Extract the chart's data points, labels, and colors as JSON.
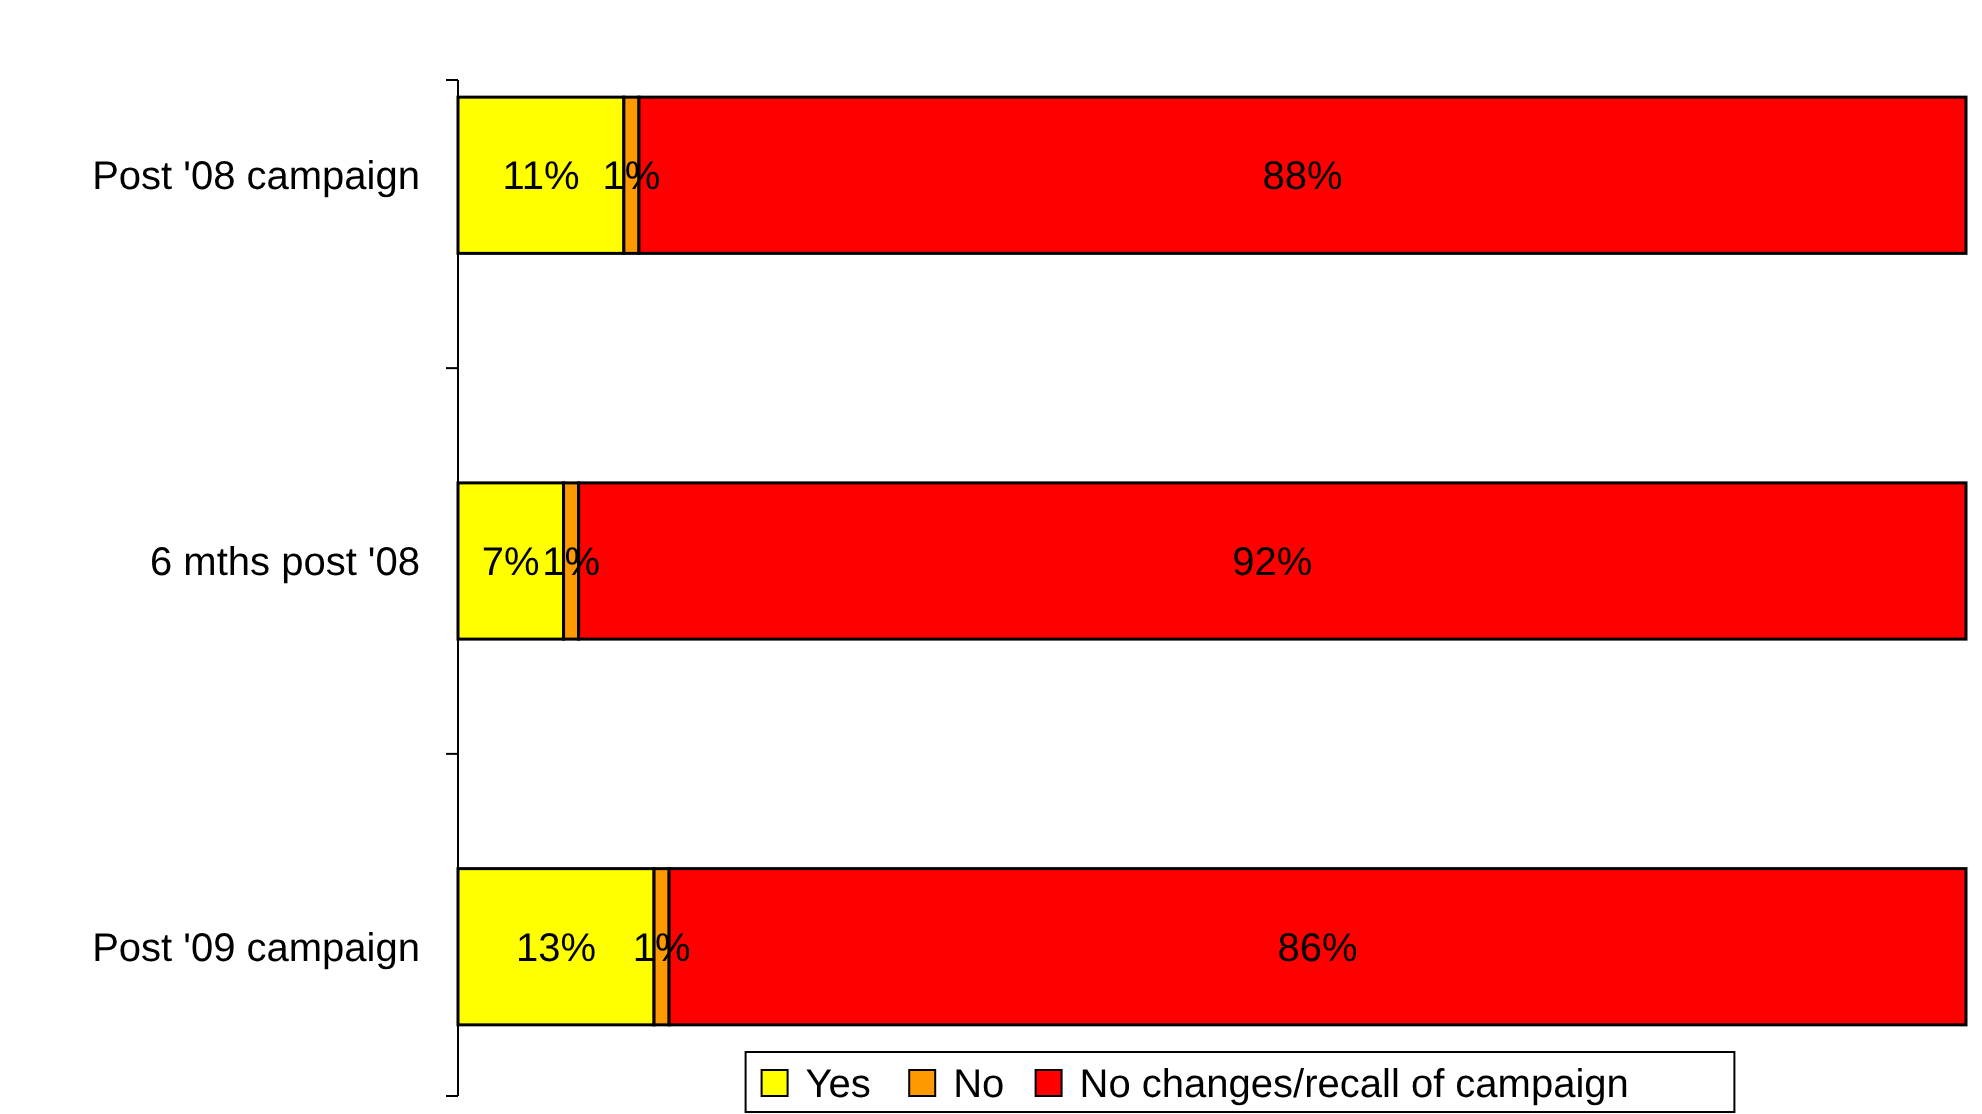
{
  "chart_data": {
    "type": "bar",
    "orientation": "horizontal",
    "stacked": true,
    "legend": "bottom",
    "categories": [
      "Post '08 campaign",
      "6 mths post '08",
      "Post '09 campaign"
    ],
    "series": [
      {
        "name": "Yes",
        "color": "#ffff00",
        "values": [
          11,
          7,
          13
        ],
        "value_labels": [
          "11%",
          "7%",
          "13%"
        ]
      },
      {
        "name": "No",
        "color": "#ff9900",
        "values": [
          1,
          1,
          1
        ],
        "value_labels": [
          "1%",
          "1%",
          "1%"
        ]
      },
      {
        "name": "No changes/recall of campaign",
        "color": "#ff0000",
        "values": [
          88,
          92,
          86
        ],
        "value_labels": [
          "88%",
          "92%",
          "86%"
        ]
      }
    ]
  }
}
